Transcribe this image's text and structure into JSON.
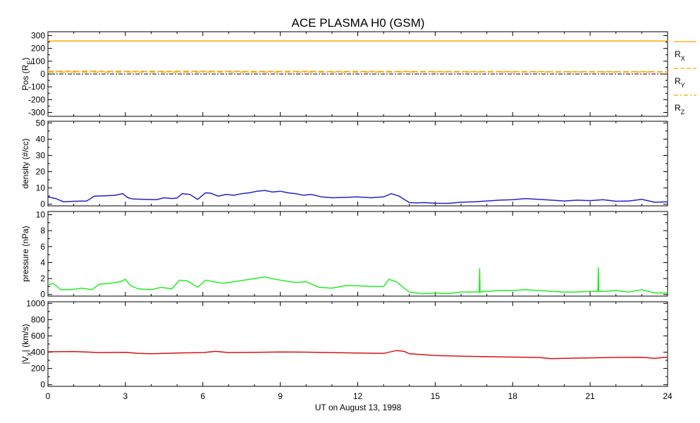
{
  "chart_data": {
    "title": "ACE PLASMA H0 (GSM)",
    "x_label": "UT on August 13, 1998",
    "x_range": [
      0,
      24
    ],
    "x_ticks": [
      0,
      3,
      6,
      9,
      12,
      15,
      18,
      21,
      24
    ],
    "x_tick_labels": [
      "0",
      "3",
      "6",
      "9",
      "12",
      "15",
      "18",
      "21",
      "24"
    ],
    "panels": [
      {
        "id": "pos",
        "type": "line",
        "ylabel": "Pos (R",
        "ylabel_sub": "E",
        "ylabel_tail": ")",
        "ylim": [
          -330,
          330
        ],
        "yticks": [
          -300,
          -200,
          -100,
          0,
          100,
          200,
          300
        ],
        "ytick_labels": [
          "-300",
          "-200",
          "-100",
          "0",
          "100",
          "200",
          "300"
        ],
        "zero_line": true,
        "series": [
          {
            "name": "X",
            "legend_main": "R",
            "legend_sub": "X",
            "color": "#ffa500",
            "dash": "solid",
            "x": [
              0,
              24
            ],
            "y": [
              258,
              258
            ]
          },
          {
            "name": "Y",
            "legend_main": "R",
            "legend_sub": "Y",
            "color": "#ffa500",
            "dash": "dashed",
            "x": [
              0,
              24
            ],
            "y": [
              22,
              18
            ]
          },
          {
            "name": "Z",
            "legend_main": "R",
            "legend_sub": "Z",
            "color": "#ffa500",
            "dash": "dashdot",
            "x": [
              0,
              24
            ],
            "y": [
              15,
              16
            ]
          }
        ]
      },
      {
        "id": "density",
        "type": "line",
        "ylabel": "density (#/cc)",
        "ylim": [
          -1,
          51
        ],
        "yticks": [
          0,
          10,
          20,
          30,
          40,
          50
        ],
        "ytick_labels": [
          "0",
          "10",
          "20",
          "30",
          "40",
          "50"
        ],
        "series": [
          {
            "name": "density",
            "color": "#2222cc",
            "x": [
              0,
              0.3,
              0.6,
              1.0,
              1.5,
              1.8,
              2.2,
              2.6,
              2.9,
              3.1,
              3.3,
              3.7,
              4.2,
              4.5,
              4.8,
              5.0,
              5.2,
              5.5,
              5.8,
              6.1,
              6.3,
              6.6,
              6.9,
              7.2,
              7.5,
              7.8,
              8.1,
              8.4,
              8.7,
              9.0,
              9.3,
              9.6,
              9.9,
              10.2,
              10.6,
              11.0,
              11.5,
              12.0,
              12.5,
              13.0,
              13.3,
              13.6,
              13.8,
              14.0,
              14.3,
              14.6,
              15.0,
              15.5,
              16.0,
              16.5,
              17.0,
              17.5,
              18.0,
              18.5,
              19.0,
              19.5,
              20.0,
              20.5,
              21.0,
              21.5,
              22.0,
              22.5,
              23.0,
              23.5,
              24.0
            ],
            "y": [
              4.5,
              3.5,
              1.5,
              1.8,
              2.0,
              5.0,
              5.2,
              5.5,
              6.5,
              4.0,
              3.2,
              3.0,
              2.8,
              4.0,
              3.5,
              3.8,
              6.5,
              6.0,
              3.0,
              7.0,
              6.8,
              5.0,
              6.0,
              5.5,
              6.5,
              7.0,
              8.0,
              8.5,
              7.5,
              8.0,
              7.0,
              6.5,
              5.5,
              6.0,
              4.5,
              4.0,
              4.2,
              4.5,
              4.0,
              4.5,
              6.5,
              5.0,
              3.0,
              1.0,
              0.8,
              1.0,
              0.6,
              0.5,
              1.2,
              1.5,
              2.0,
              2.5,
              2.8,
              3.5,
              3.0,
              2.5,
              2.0,
              2.5,
              2.2,
              2.8,
              1.8,
              2.0,
              3.0,
              1.2,
              1.5
            ]
          }
        ]
      },
      {
        "id": "pressure",
        "type": "line",
        "ylabel": "pressure (nPa)",
        "ylim": [
          -0.2,
          10.4
        ],
        "yticks": [
          0,
          2,
          4,
          6,
          8,
          10
        ],
        "ytick_labels": [
          "0",
          "2",
          "4",
          "6",
          "8",
          "10"
        ],
        "series": [
          {
            "name": "pressure",
            "color": "#22ee22",
            "x": [
              0,
              0.2,
              0.5,
              0.9,
              1.3,
              1.7,
              2.0,
              2.4,
              2.8,
              3.0,
              3.2,
              3.5,
              4.0,
              4.4,
              4.8,
              5.1,
              5.4,
              5.8,
              6.1,
              6.4,
              6.8,
              7.2,
              7.6,
              8.0,
              8.4,
              8.8,
              9.2,
              9.6,
              10.0,
              10.5,
              11.0,
              11.5,
              12.0,
              12.5,
              13.0,
              13.2,
              13.5,
              13.8,
              14.0,
              14.5,
              15.0,
              15.5,
              16.0,
              16.5,
              16.7,
              16.72,
              16.74,
              17.0,
              17.5,
              18.0,
              18.5,
              19.0,
              19.5,
              20.0,
              20.5,
              21.0,
              21.3,
              21.32,
              21.34,
              21.5,
              22.0,
              22.5,
              23.0,
              23.5,
              24.0
            ],
            "y": [
              1.2,
              1.4,
              0.6,
              0.6,
              0.8,
              0.6,
              1.3,
              1.4,
              1.6,
              1.9,
              1.1,
              0.7,
              0.6,
              0.9,
              0.7,
              1.8,
              1.7,
              0.9,
              1.8,
              1.6,
              1.4,
              1.6,
              1.8,
              2.0,
              2.2,
              1.9,
              1.7,
              1.5,
              1.6,
              0.9,
              0.8,
              1.1,
              1.1,
              1.0,
              1.0,
              1.9,
              1.6,
              0.8,
              0.3,
              0.1,
              0.2,
              0.1,
              0.3,
              0.3,
              0.3,
              3.3,
              0.3,
              0.4,
              0.5,
              0.5,
              0.6,
              0.5,
              0.4,
              0.3,
              0.3,
              0.4,
              0.4,
              3.4,
              0.4,
              0.4,
              0.5,
              0.3,
              0.6,
              0.2,
              0.2
            ]
          }
        ]
      },
      {
        "id": "velocity",
        "type": "line",
        "ylabel": "|V",
        "ylabel_sub": "X",
        "ylabel_tail": "| (km/s)",
        "ylim": [
          -20,
          1020
        ],
        "yticks": [
          0,
          200,
          400,
          600,
          800,
          1000
        ],
        "ytick_labels": [
          "0",
          "200",
          "400",
          "600",
          "800",
          "1000"
        ],
        "series": [
          {
            "name": "velocity",
            "color": "#dd1111",
            "x": [
              0,
              1,
              2,
              3,
              3.5,
              4,
              5,
              6,
              6.5,
              7,
              8,
              9,
              10,
              11,
              12,
              13,
              13.5,
              13.8,
              14.0,
              14.5,
              15,
              15.5,
              16,
              17,
              18,
              19,
              19.5,
              20,
              21,
              22,
              23,
              23.5,
              24
            ],
            "y": [
              405,
              408,
              395,
              398,
              385,
              380,
              390,
              395,
              410,
              395,
              398,
              403,
              400,
              395,
              390,
              385,
              420,
              410,
              380,
              370,
              360,
              355,
              350,
              345,
              340,
              335,
              320,
              325,
              330,
              335,
              338,
              325,
              340
            ]
          }
        ]
      }
    ],
    "grid": false
  }
}
